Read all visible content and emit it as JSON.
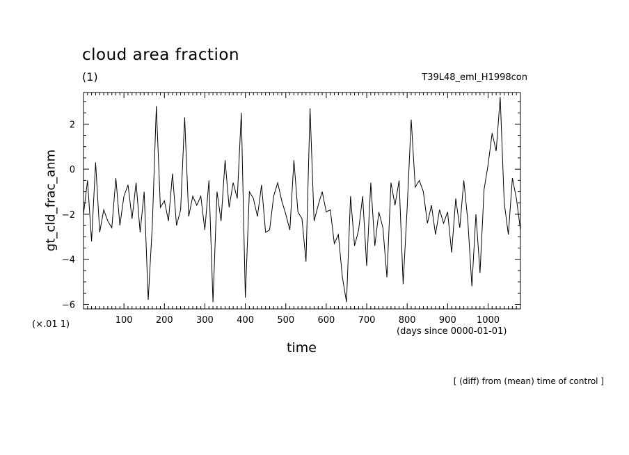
{
  "chart_data": {
    "type": "line",
    "title": "cloud area fraction",
    "units": "(1)",
    "run_id": "T39L48_eml_H1998con",
    "ylabel": "gt_cld_frac_anm",
    "xlabel": "time",
    "x_units": "(days since 0000-01-01)",
    "y_scale_note": "(×.01 1)",
    "footer_note": "[ (diff) from (mean) time of control ]",
    "xlim": [
      0,
      1080
    ],
    "ylim": [
      -6.2,
      3.4
    ],
    "x_ticks": [
      100,
      200,
      300,
      400,
      500,
      600,
      700,
      800,
      900,
      1000
    ],
    "y_ticks": [
      -6,
      -4,
      -2,
      0,
      2
    ],
    "series": [
      {
        "x": [
          0,
          10,
          20,
          30,
          40,
          50,
          60,
          70,
          80,
          90,
          100,
          110,
          120,
          130,
          140,
          150,
          160,
          170,
          180,
          190,
          200,
          210,
          220,
          230,
          240,
          250,
          260,
          270,
          280,
          290,
          300,
          310,
          320,
          330,
          340,
          350,
          360,
          370,
          380,
          390,
          400,
          410,
          420,
          430,
          440,
          450,
          460,
          470,
          480,
          490,
          500,
          510,
          520,
          530,
          540,
          550,
          560,
          570,
          580,
          590,
          600,
          610,
          620,
          630,
          640,
          650,
          660,
          670,
          680,
          690,
          700,
          710,
          720,
          730,
          740,
          750,
          760,
          770,
          780,
          790,
          800,
          810,
          820,
          830,
          840,
          850,
          860,
          870,
          880,
          890,
          900,
          910,
          920,
          930,
          940,
          950,
          960,
          970,
          980,
          990,
          1000,
          1010,
          1020,
          1030,
          1040,
          1050,
          1060,
          1070,
          1080
        ],
        "y": [
          -2.0,
          -0.5,
          -3.2,
          0.3,
          -2.8,
          -1.8,
          -2.3,
          -2.6,
          -0.4,
          -2.5,
          -1.2,
          -0.7,
          -2.2,
          -0.6,
          -2.8,
          -1.0,
          -5.8,
          -2.5,
          2.8,
          -1.7,
          -1.4,
          -2.3,
          -0.2,
          -2.5,
          -1.8,
          2.3,
          -2.1,
          -1.2,
          -1.6,
          -1.2,
          -2.7,
          -0.5,
          -5.9,
          -1.0,
          -2.3,
          0.4,
          -1.7,
          -0.6,
          -1.3,
          2.5,
          -5.7,
          -1.0,
          -1.3,
          -2.1,
          -0.7,
          -2.8,
          -2.7,
          -1.2,
          -0.6,
          -1.4,
          -2.0,
          -2.7,
          0.4,
          -1.9,
          -2.2,
          -4.1,
          2.7,
          -2.3,
          -1.6,
          -1.0,
          -1.9,
          -1.8,
          -3.3,
          -2.9,
          -4.8,
          -5.9,
          -1.2,
          -3.4,
          -2.7,
          -1.2,
          -4.3,
          -0.6,
          -3.4,
          -1.9,
          -2.6,
          -4.8,
          -0.6,
          -1.6,
          -0.5,
          -5.1,
          -1.7,
          2.2,
          -0.8,
          -0.5,
          -1.0,
          -2.4,
          -1.6,
          -2.9,
          -1.8,
          -2.4,
          -1.9,
          -3.7,
          -1.3,
          -2.6,
          -0.5,
          -2.3,
          -5.2,
          -2.0,
          -4.6,
          -0.9,
          0.2,
          1.6,
          0.8,
          3.2,
          -1.5,
          -2.9,
          -0.4,
          -1.3,
          -2.7
        ]
      }
    ]
  }
}
